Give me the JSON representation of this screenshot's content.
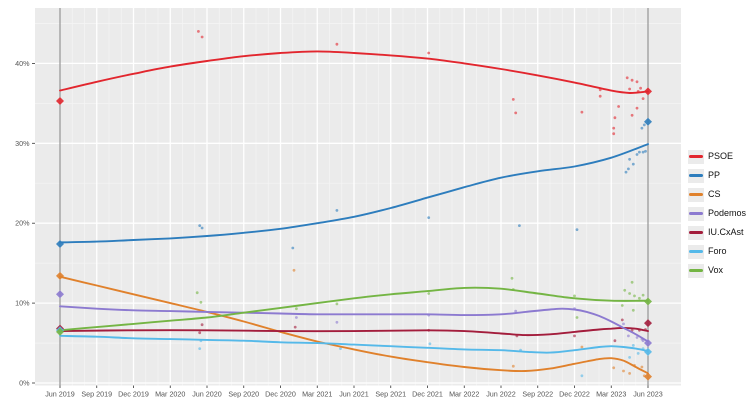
{
  "chart": {
    "panel_bg": "#ebebeb",
    "grid_major": "#ffffff",
    "grid_minor": "#f4f4f4",
    "axis_text_color": "#555555",
    "tick_color": "#333333",
    "election_line_color": "#7d7d7d"
  },
  "chart_data": {
    "type": "line",
    "title": "",
    "xlabel": "",
    "ylabel": "",
    "legend_position": "right",
    "grid": true,
    "ylim": [
      0,
      47
    ],
    "x_range_months": [
      0,
      48
    ],
    "election_months": [
      0,
      48
    ],
    "x_ticks": [
      {
        "m": 0,
        "label": "Jun 2019"
      },
      {
        "m": 3,
        "label": "Sep 2019"
      },
      {
        "m": 6,
        "label": "Dec 2019"
      },
      {
        "m": 9,
        "label": "Mar 2020"
      },
      {
        "m": 12,
        "label": "Jun 2020"
      },
      {
        "m": 15,
        "label": "Sep 2020"
      },
      {
        "m": 18,
        "label": "Dec 2020"
      },
      {
        "m": 21,
        "label": "Mar 2021"
      },
      {
        "m": 24,
        "label": "Jun 2021"
      },
      {
        "m": 27,
        "label": "Sep 2021"
      },
      {
        "m": 30,
        "label": "Dec 2021"
      },
      {
        "m": 33,
        "label": "Mar 2022"
      },
      {
        "m": 36,
        "label": "Jun 2022"
      },
      {
        "m": 39,
        "label": "Sep 2022"
      },
      {
        "m": 42,
        "label": "Dec 2022"
      },
      {
        "m": 45,
        "label": "Mar 2023"
      },
      {
        "m": 48,
        "label": "Jun 2023"
      }
    ],
    "y_ticks": [
      {
        "v": 0,
        "label": "0%"
      },
      {
        "v": 10,
        "label": "10%"
      },
      {
        "v": 20,
        "label": "20%"
      },
      {
        "v": 30,
        "label": "30%"
      },
      {
        "v": 40,
        "label": "40%"
      }
    ],
    "series": [
      {
        "name": "PSOE",
        "color": "#e2262e",
        "trend": [
          [
            0,
            36.6
          ],
          [
            3,
            37.7
          ],
          [
            6,
            38.7
          ],
          [
            9,
            39.6
          ],
          [
            12,
            40.3
          ],
          [
            15,
            40.9
          ],
          [
            18,
            41.3
          ],
          [
            21,
            41.5
          ],
          [
            24,
            41.3
          ],
          [
            27,
            41.0
          ],
          [
            30,
            40.6
          ],
          [
            33,
            40.0
          ],
          [
            36,
            39.3
          ],
          [
            39,
            38.5
          ],
          [
            42,
            37.6
          ],
          [
            45,
            36.6
          ],
          [
            46.5,
            36.3
          ],
          [
            48,
            36.5
          ]
        ],
        "polls": [
          [
            11.3,
            44.0
          ],
          [
            11.6,
            43.3
          ],
          [
            22.6,
            42.4
          ],
          [
            30.1,
            41.3
          ],
          [
            37.0,
            35.5
          ],
          [
            37.2,
            33.8
          ],
          [
            42.6,
            33.9
          ],
          [
            44.1,
            36.7
          ],
          [
            44.1,
            35.9
          ],
          [
            45.2,
            31.9
          ],
          [
            45.2,
            31.2
          ],
          [
            45.3,
            33.2
          ],
          [
            45.6,
            34.6
          ],
          [
            46.3,
            38.2
          ],
          [
            46.5,
            36.8
          ],
          [
            46.7,
            37.9
          ],
          [
            46.7,
            33.5
          ],
          [
            47.1,
            37.7
          ],
          [
            47.1,
            34.4
          ],
          [
            47.2,
            36.5
          ],
          [
            47.4,
            36.9
          ],
          [
            47.6,
            35.6
          ]
        ],
        "elections": [
          [
            0,
            35.3
          ],
          [
            48,
            36.5
          ]
        ]
      },
      {
        "name": "PP",
        "color": "#2d7dbd",
        "trend": [
          [
            0,
            17.6
          ],
          [
            3,
            17.7
          ],
          [
            6,
            17.9
          ],
          [
            9,
            18.1
          ],
          [
            12,
            18.4
          ],
          [
            15,
            18.8
          ],
          [
            18,
            19.3
          ],
          [
            21,
            20.0
          ],
          [
            24,
            20.8
          ],
          [
            27,
            21.9
          ],
          [
            30,
            23.2
          ],
          [
            33,
            24.5
          ],
          [
            36,
            25.7
          ],
          [
            39,
            26.5
          ],
          [
            42,
            27.1
          ],
          [
            45,
            28.2
          ],
          [
            48,
            29.9
          ]
        ],
        "polls": [
          [
            11.4,
            19.7
          ],
          [
            11.6,
            19.4
          ],
          [
            19.0,
            16.9
          ],
          [
            22.6,
            21.6
          ],
          [
            30.1,
            20.7
          ],
          [
            37.5,
            19.7
          ],
          [
            42.2,
            19.2
          ],
          [
            46.2,
            26.4
          ],
          [
            46.4,
            26.8
          ],
          [
            46.5,
            28.0
          ],
          [
            46.8,
            27.4
          ],
          [
            47.1,
            28.6
          ],
          [
            47.3,
            28.9
          ],
          [
            47.6,
            28.9
          ],
          [
            47.8,
            29.0
          ],
          [
            47.5,
            31.9
          ],
          [
            47.7,
            32.3
          ]
        ],
        "elections": [
          [
            0,
            17.4
          ],
          [
            48,
            32.7
          ]
        ]
      },
      {
        "name": "CS",
        "color": "#e0812c",
        "trend": [
          [
            0,
            13.3
          ],
          [
            3,
            12.2
          ],
          [
            6,
            11.1
          ],
          [
            9,
            10.0
          ],
          [
            12,
            8.9
          ],
          [
            15,
            7.7
          ],
          [
            18,
            6.4
          ],
          [
            21,
            5.2
          ],
          [
            24,
            4.2
          ],
          [
            27,
            3.3
          ],
          [
            30,
            2.6
          ],
          [
            33,
            2.0
          ],
          [
            36,
            1.6
          ],
          [
            38,
            1.5
          ],
          [
            40,
            1.8
          ],
          [
            42,
            2.4
          ],
          [
            44,
            3.0
          ],
          [
            45,
            3.1
          ],
          [
            46,
            2.8
          ],
          [
            47,
            2.0
          ],
          [
            48,
            1.2
          ]
        ],
        "polls": [
          [
            19.1,
            14.1
          ],
          [
            37.0,
            2.1
          ],
          [
            42.6,
            4.5
          ],
          [
            45.2,
            1.9
          ],
          [
            46.0,
            1.5
          ],
          [
            46.5,
            1.2
          ],
          [
            46.9,
            2.2
          ],
          [
            47.5,
            2.0
          ],
          [
            47.7,
            0.9
          ]
        ],
        "elections": [
          [
            0,
            13.4
          ],
          [
            48,
            0.8
          ]
        ]
      },
      {
        "name": "Podemos",
        "color": "#8c7ad0",
        "trend": [
          [
            0,
            9.6
          ],
          [
            3,
            9.3
          ],
          [
            6,
            9.1
          ],
          [
            9,
            9.0
          ],
          [
            12,
            8.9
          ],
          [
            15,
            8.8
          ],
          [
            18,
            8.7
          ],
          [
            21,
            8.6
          ],
          [
            24,
            8.6
          ],
          [
            27,
            8.6
          ],
          [
            30,
            8.6
          ],
          [
            33,
            8.5
          ],
          [
            36,
            8.6
          ],
          [
            38,
            8.9
          ],
          [
            40,
            9.2
          ],
          [
            41,
            9.3
          ],
          [
            42,
            9.2
          ],
          [
            43,
            8.9
          ],
          [
            44,
            8.4
          ],
          [
            45,
            7.7
          ],
          [
            46,
            6.9
          ],
          [
            47,
            6.1
          ],
          [
            48,
            5.2
          ]
        ],
        "polls": [
          [
            19.3,
            8.2
          ],
          [
            22.6,
            7.6
          ],
          [
            30.1,
            8.5
          ],
          [
            37.2,
            9.0
          ],
          [
            42.0,
            9.3
          ],
          [
            46.0,
            7.4
          ],
          [
            46.4,
            5.9
          ],
          [
            47.1,
            5.7
          ],
          [
            47.5,
            5.5
          ],
          [
            47.6,
            5.3
          ]
        ],
        "elections": [
          [
            0,
            11.1
          ],
          [
            48,
            5.0
          ]
        ]
      },
      {
        "name": "IU.CxAst",
        "color": "#a31d3c",
        "trend": [
          [
            0,
            6.5
          ],
          [
            6,
            6.6
          ],
          [
            12,
            6.6
          ],
          [
            18,
            6.5
          ],
          [
            24,
            6.5
          ],
          [
            30,
            6.6
          ],
          [
            33,
            6.5
          ],
          [
            36,
            6.2
          ],
          [
            38,
            6.0
          ],
          [
            40,
            6.1
          ],
          [
            42,
            6.4
          ],
          [
            44,
            6.7
          ],
          [
            45,
            6.8
          ],
          [
            46,
            6.9
          ],
          [
            47,
            6.8
          ],
          [
            48,
            6.5
          ]
        ],
        "polls": [
          [
            11.4,
            6.3
          ],
          [
            11.6,
            7.3
          ],
          [
            19.2,
            7.0
          ],
          [
            30.1,
            6.6
          ],
          [
            37.3,
            5.9
          ],
          [
            42.0,
            5.9
          ],
          [
            45.3,
            5.3
          ],
          [
            45.9,
            7.9
          ],
          [
            46.7,
            6.6
          ],
          [
            47.3,
            6.6
          ],
          [
            47.8,
            6.7
          ]
        ],
        "elections": [
          [
            0,
            6.8
          ],
          [
            48,
            7.5
          ]
        ]
      },
      {
        "name": "Foro",
        "color": "#55b9e9",
        "trend": [
          [
            0,
            5.9
          ],
          [
            3,
            5.8
          ],
          [
            6,
            5.6
          ],
          [
            9,
            5.5
          ],
          [
            12,
            5.4
          ],
          [
            15,
            5.3
          ],
          [
            18,
            5.1
          ],
          [
            21,
            5.0
          ],
          [
            24,
            4.8
          ],
          [
            27,
            4.6
          ],
          [
            30,
            4.4
          ],
          [
            33,
            4.2
          ],
          [
            36,
            4.1
          ],
          [
            38,
            3.9
          ],
          [
            40,
            3.8
          ],
          [
            42,
            4.1
          ],
          [
            44,
            4.5
          ],
          [
            45,
            4.6
          ],
          [
            46,
            4.5
          ],
          [
            47,
            4.3
          ],
          [
            48,
            4.0
          ]
        ],
        "polls": [
          [
            11.4,
            4.3
          ],
          [
            11.5,
            5.3
          ],
          [
            22.9,
            4.3
          ],
          [
            30.2,
            4.9
          ],
          [
            37.6,
            4.1
          ],
          [
            42.6,
            0.9
          ],
          [
            46.5,
            3.2
          ],
          [
            46.8,
            4.7
          ],
          [
            47.2,
            3.7
          ],
          [
            47.6,
            4.3
          ]
        ],
        "elections": [
          [
            0,
            6.6
          ],
          [
            48,
            3.9
          ]
        ]
      },
      {
        "name": "Vox",
        "color": "#74b544",
        "trend": [
          [
            0,
            6.6
          ],
          [
            3,
            7.0
          ],
          [
            6,
            7.4
          ],
          [
            9,
            7.8
          ],
          [
            12,
            8.2
          ],
          [
            15,
            8.8
          ],
          [
            18,
            9.4
          ],
          [
            21,
            10.0
          ],
          [
            24,
            10.6
          ],
          [
            27,
            11.1
          ],
          [
            30,
            11.5
          ],
          [
            33,
            11.9
          ],
          [
            36,
            11.8
          ],
          [
            39,
            11.2
          ],
          [
            42,
            10.6
          ],
          [
            45,
            10.3
          ],
          [
            48,
            10.3
          ]
        ],
        "polls": [
          [
            11.2,
            11.3
          ],
          [
            11.5,
            10.1
          ],
          [
            19.3,
            9.3
          ],
          [
            22.6,
            9.9
          ],
          [
            30.1,
            11.2
          ],
          [
            36.9,
            13.1
          ],
          [
            37.0,
            11.7
          ],
          [
            42.0,
            10.9
          ],
          [
            42.2,
            8.2
          ],
          [
            45.9,
            9.7
          ],
          [
            46.1,
            11.6
          ],
          [
            46.5,
            11.2
          ],
          [
            46.7,
            12.6
          ],
          [
            46.8,
            9.1
          ],
          [
            46.9,
            10.9
          ],
          [
            47.3,
            10.6
          ],
          [
            47.6,
            11.0
          ]
        ],
        "elections": [
          [
            0,
            6.4
          ],
          [
            48,
            10.2
          ]
        ]
      }
    ]
  }
}
